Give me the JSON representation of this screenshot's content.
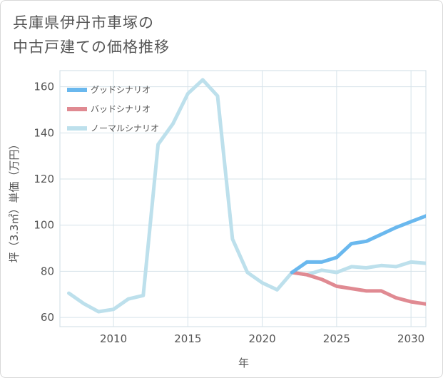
{
  "title_lines": [
    "兵庫県伊丹市車塚の",
    "中古戸建ての価格推移"
  ],
  "chart_data": {
    "type": "line",
    "xlabel": "年",
    "ylabel": "坪（3.3㎡）単価（万円）",
    "xlim": [
      2006.4,
      2031
    ],
    "ylim": [
      56,
      167
    ],
    "x_ticks": [
      2010,
      2015,
      2020,
      2025,
      2030
    ],
    "y_ticks": [
      60,
      80,
      100,
      120,
      140,
      160
    ],
    "grid": true,
    "legend_position": "top-left",
    "series": [
      {
        "name": "グッドシナリオ",
        "color": "#6ab8ee",
        "x": [
          2022,
          2023,
          2024,
          2025,
          2026,
          2027,
          2028,
          2029,
          2030,
          2031
        ],
        "y": [
          79.5,
          84,
          84,
          86,
          92,
          93,
          96,
          99,
          101.5,
          104
        ]
      },
      {
        "name": "バッドシナリオ",
        "color": "#e08a92",
        "x": [
          2022,
          2023,
          2024,
          2025,
          2026,
          2027,
          2028,
          2029,
          2030,
          2031
        ],
        "y": [
          79.5,
          78.5,
          76.5,
          73.5,
          72.5,
          71.5,
          71.5,
          68.5,
          66.8,
          65.8
        ]
      },
      {
        "name": "ノーマルシナリオ",
        "color": "#bde0ec",
        "x": [
          2007,
          2008,
          2009,
          2010,
          2011,
          2012,
          2013,
          2014,
          2015,
          2016,
          2017,
          2018,
          2019,
          2020,
          2021,
          2022,
          2023,
          2024,
          2025,
          2026,
          2027,
          2028,
          2029,
          2030,
          2031
        ],
        "y": [
          70.5,
          66,
          62.5,
          63.5,
          68,
          69.5,
          135,
          144,
          157,
          163,
          156,
          94,
          79.5,
          75,
          72,
          79.5,
          78.5,
          80.5,
          79.5,
          82,
          81.5,
          82.5,
          82,
          84,
          83.5
        ]
      }
    ]
  }
}
